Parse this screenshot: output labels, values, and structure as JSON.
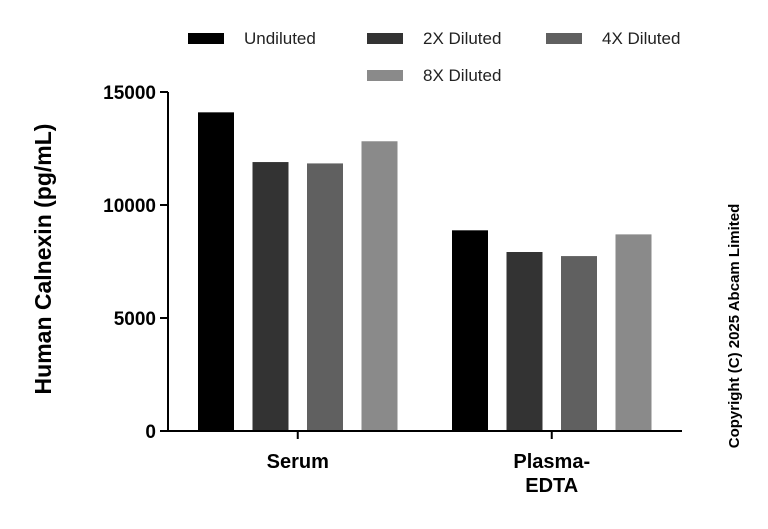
{
  "chart_data": {
    "type": "bar",
    "categories": [
      [
        "Serum"
      ],
      [
        "Plasma-",
        "EDTA"
      ]
    ],
    "series": [
      {
        "name": "Undiluted",
        "color": "#000000",
        "values": [
          14100,
          8880
        ]
      },
      {
        "name": "2X Diluted",
        "color": "#333333",
        "values": [
          11900,
          7920
        ]
      },
      {
        "name": "4X Diluted",
        "color": "#606060",
        "values": [
          11840,
          7740
        ]
      },
      {
        "name": "8X Diluted",
        "color": "#8a8a8a",
        "values": [
          12820,
          8700
        ]
      }
    ],
    "ylabel": "Human Calnexin (pg/mL)",
    "ylim": [
      0,
      15000
    ],
    "yticks": [
      0,
      5000,
      10000,
      15000
    ],
    "legend_position": "top",
    "grid": false
  },
  "copyright": "Copyright (C) 2025 Abcam Limited"
}
